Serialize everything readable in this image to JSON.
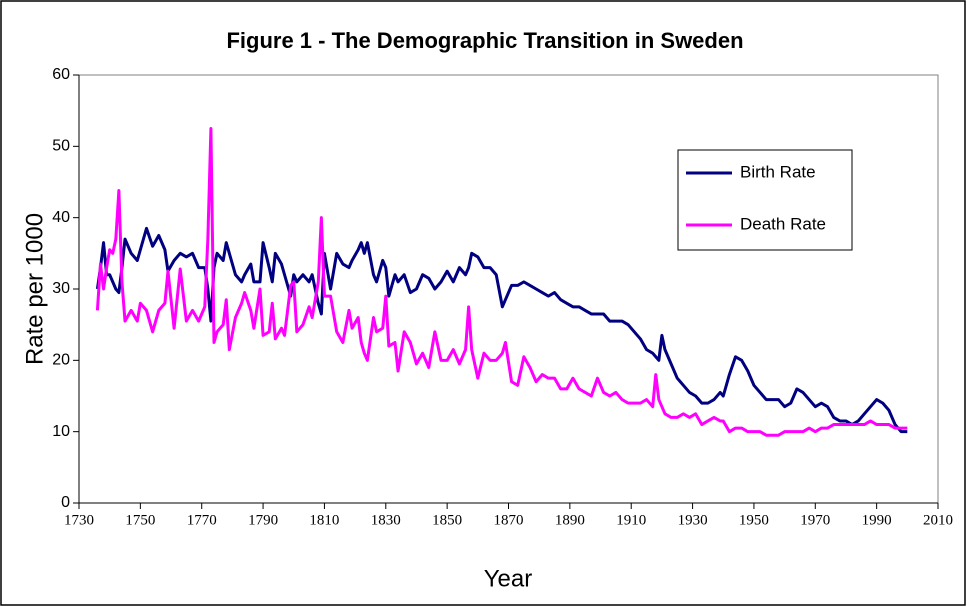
{
  "chart_data": {
    "type": "line",
    "title": "Figure 1 - The Demographic Transition in Sweden",
    "xlabel": "Year",
    "ylabel": "Rate per 1000",
    "xlim": [
      1730,
      2010
    ],
    "xticks": [
      1730,
      1750,
      1770,
      1790,
      1810,
      1830,
      1850,
      1870,
      1890,
      1910,
      1930,
      1950,
      1970,
      1990,
      2010
    ],
    "ylim": [
      0,
      60
    ],
    "yticks": [
      0,
      10,
      20,
      30,
      40,
      50,
      60
    ],
    "legend": "upper right",
    "x": [
      1736,
      1737,
      1738,
      1739,
      1740,
      1741,
      1742,
      1743,
      1744,
      1745,
      1747,
      1749,
      1750,
      1752,
      1754,
      1756,
      1758,
      1759,
      1761,
      1763,
      1765,
      1767,
      1769,
      1771,
      1772,
      1773,
      1774,
      1775,
      1777,
      1778,
      1779,
      1781,
      1783,
      1784,
      1786,
      1787,
      1789,
      1790,
      1792,
      1793,
      1794,
      1796,
      1797,
      1799,
      1800,
      1801,
      1803,
      1805,
      1806,
      1808,
      1809,
      1810,
      1812,
      1814,
      1816,
      1818,
      1819,
      1821,
      1822,
      1823,
      1824,
      1826,
      1827,
      1829,
      1830,
      1831,
      1833,
      1834,
      1836,
      1838,
      1840,
      1842,
      1844,
      1846,
      1848,
      1850,
      1852,
      1854,
      1856,
      1857,
      1858,
      1860,
      1862,
      1864,
      1866,
      1868,
      1869,
      1871,
      1873,
      1875,
      1877,
      1879,
      1881,
      1883,
      1885,
      1887,
      1889,
      1891,
      1893,
      1895,
      1897,
      1899,
      1901,
      1903,
      1905,
      1907,
      1909,
      1911,
      1913,
      1915,
      1917,
      1918,
      1919,
      1920,
      1921,
      1923,
      1925,
      1927,
      1929,
      1931,
      1933,
      1935,
      1937,
      1939,
      1940,
      1942,
      1944,
      1946,
      1948,
      1950,
      1952,
      1954,
      1956,
      1958,
      1960,
      1962,
      1964,
      1966,
      1968,
      1970,
      1972,
      1974,
      1976,
      1978,
      1980,
      1982,
      1984,
      1986,
      1988,
      1990,
      1992,
      1994,
      1996,
      1998,
      2000
    ],
    "series": [
      {
        "name": "Birth Rate",
        "color": "#000080",
        "values": [
          30,
          33,
          36.5,
          32,
          32,
          31,
          30,
          29.5,
          33,
          37,
          35,
          34,
          35.5,
          38.5,
          36,
          37.5,
          35.5,
          32.5,
          34,
          35,
          34.5,
          35,
          33,
          33,
          30,
          25.5,
          33,
          35,
          34,
          36.5,
          35,
          32,
          31,
          32,
          33.5,
          31,
          31,
          36.5,
          33,
          31,
          35,
          33.5,
          32,
          29,
          32,
          31,
          32,
          31,
          32,
          28,
          26.5,
          35,
          30,
          35,
          33.5,
          33,
          34,
          35.5,
          36.5,
          35,
          36.5,
          32,
          31,
          34,
          33,
          29,
          32,
          31,
          32,
          29.5,
          30,
          32,
          31.5,
          30,
          31,
          32.5,
          31,
          33,
          32,
          33,
          35,
          34.5,
          33,
          33,
          32,
          27.5,
          28.5,
          30.5,
          30.5,
          31,
          30.5,
          30,
          29.5,
          29,
          29.5,
          28.5,
          28,
          27.5,
          27.5,
          27,
          26.5,
          26.5,
          26.5,
          25.5,
          25.5,
          25.5,
          25,
          24,
          23,
          21.5,
          21,
          20.5,
          20,
          23.5,
          21.5,
          19.5,
          17.5,
          16.5,
          15.5,
          15,
          14,
          14,
          14.5,
          15.5,
          15,
          18,
          20.5,
          20,
          18.5,
          16.5,
          15.5,
          14.5,
          14.5,
          14.5,
          13.5,
          14,
          16,
          15.5,
          14.5,
          13.5,
          14,
          13.5,
          12,
          11.5,
          11.5,
          11,
          11.5,
          12.5,
          13.5,
          14.5,
          14,
          13,
          11,
          10,
          10
        ]
      },
      {
        "name": "Death Rate",
        "color": "#ff00ff",
        "values": [
          27,
          33.5,
          30,
          33,
          35.5,
          35,
          37,
          43.8,
          31,
          25.5,
          27,
          25.5,
          28,
          27,
          24,
          27,
          28,
          32.5,
          24.5,
          32.8,
          25.5,
          27,
          25.5,
          27.5,
          37,
          52.5,
          22.5,
          24,
          25,
          28.5,
          21.5,
          26,
          28,
          29.5,
          27,
          24.5,
          30,
          23.5,
          24,
          28,
          23,
          24.5,
          23.5,
          30.5,
          31,
          24,
          25,
          27.5,
          26,
          31,
          40,
          29,
          29,
          24,
          22.5,
          27,
          24.5,
          26,
          22.5,
          21,
          20,
          26,
          24,
          24.5,
          29,
          22,
          22.5,
          18.5,
          24,
          22.5,
          19.5,
          21,
          19,
          24,
          20,
          20,
          21.5,
          19.5,
          21.5,
          27.5,
          21.5,
          17.5,
          21,
          20,
          20,
          21,
          22.5,
          17,
          16.5,
          20.5,
          19,
          17,
          18,
          17.5,
          17.5,
          16,
          16,
          17.5,
          16,
          15.5,
          15,
          17.5,
          15.5,
          15,
          15.5,
          14.5,
          14,
          14,
          14,
          14.5,
          13.5,
          18,
          14.5,
          13.5,
          12.5,
          12,
          12,
          12.5,
          12,
          12.5,
          11,
          11.5,
          12,
          11.5,
          11.5,
          10,
          10.5,
          10.5,
          10,
          10,
          10,
          9.5,
          9.5,
          9.5,
          10,
          10,
          10,
          10,
          10.5,
          10,
          10.5,
          10.5,
          11,
          11,
          11,
          11,
          11,
          11,
          11.5,
          11,
          11,
          11,
          10.5,
          10.5,
          10.5
        ]
      }
    ]
  }
}
